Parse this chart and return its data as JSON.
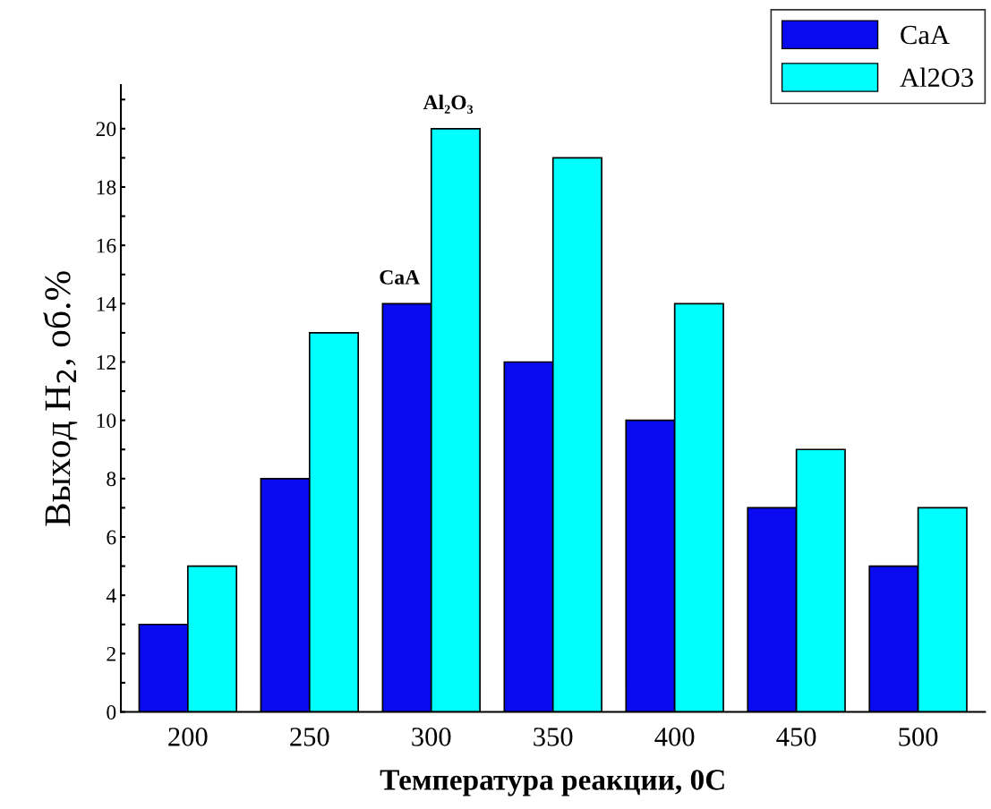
{
  "chart_data": {
    "type": "bar",
    "xlabel": "Температура реакции, 0С",
    "ylabel": "Выход H$_{2}$, об.%",
    "categories": [
      "200",
      "250",
      "300",
      "350",
      "400",
      "450",
      "500"
    ],
    "series": [
      {
        "name": "CaA",
        "color": "#0a0af0",
        "values": [
          3,
          8,
          14,
          12,
          10,
          7,
          5
        ]
      },
      {
        "name": "Al2O3",
        "color": "#00ffff",
        "values": [
          5,
          13,
          20,
          19,
          14,
          9,
          7
        ]
      }
    ],
    "ylim": [
      0,
      21.5
    ],
    "yticks": [
      0,
      {
        "value": 1,
        "label": null
      },
      2,
      {
        "value": 3,
        "label": null
      },
      4,
      {
        "value": 5,
        "label": null
      },
      6,
      {
        "value": 7,
        "label": null
      },
      8,
      {
        "value": 9,
        "label": null
      },
      10,
      {
        "value": 11,
        "label": null
      },
      12,
      {
        "value": 13,
        "label": null
      },
      14,
      {
        "value": 15,
        "label": null
      },
      16,
      {
        "value": 17,
        "label": null
      },
      18,
      {
        "value": 19,
        "label": null
      },
      20,
      {
        "value": 21,
        "label": null
      }
    ],
    "annotations": [
      {
        "text": "CaA",
        "x": "300",
        "y": 14
      },
      {
        "text": "Al₂O₃",
        "x": "300",
        "y": 20
      }
    ],
    "grid": false,
    "legend": "top right"
  }
}
